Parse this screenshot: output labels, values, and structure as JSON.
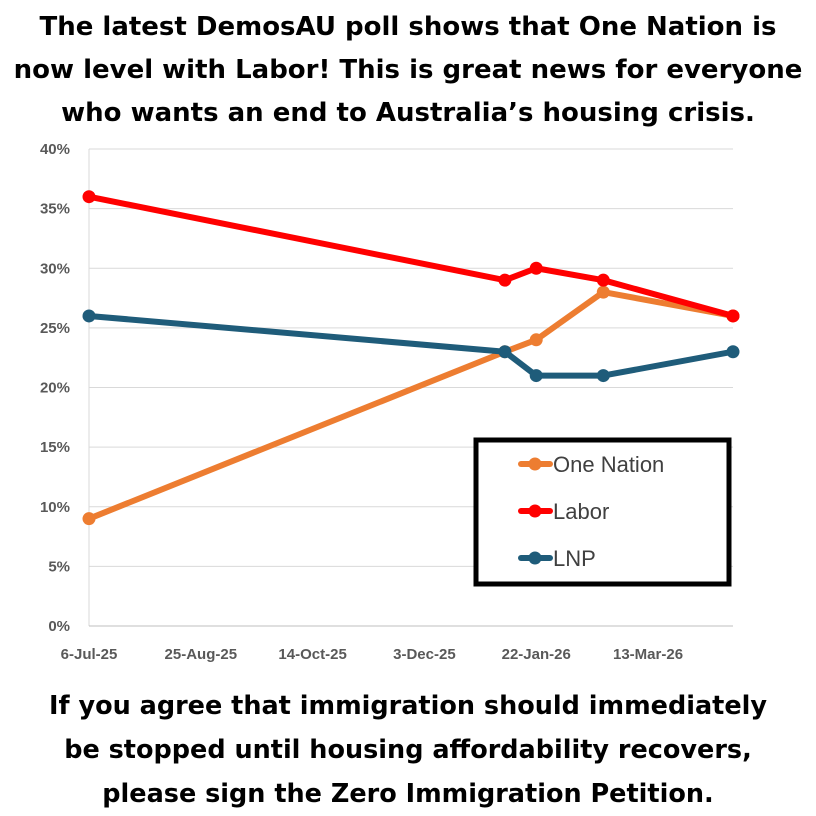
{
  "header": {
    "line1": "The latest DemosAU poll shows that One Nation is",
    "line2": "now level with Labor! This is great news for everyone",
    "line3": "who wants an end to Australia’s housing crisis."
  },
  "footer": {
    "line1": "If you agree that immigration should immediately",
    "line2": "be stopped until housing affordability recovers,",
    "line3": "please sign the Zero Immigration Petition."
  },
  "chart_data": {
    "type": "line",
    "title": "",
    "xlabel": "",
    "ylabel": "",
    "x_axis": {
      "type": "date",
      "range": [
        "2025-07-06",
        "2026-04-20"
      ],
      "tick_dates": [
        "2025-07-06",
        "2025-08-25",
        "2025-10-14",
        "2025-12-03",
        "2026-01-22",
        "2026-03-13"
      ],
      "tick_labels": [
        "6-Jul-25",
        "25-Aug-25",
        "14-Oct-25",
        "3-Dec-25",
        "22-Jan-26",
        "13-Mar-26"
      ]
    },
    "y_axis": {
      "range": [
        0,
        40
      ],
      "unit": "%",
      "ticks": [
        0,
        5,
        10,
        15,
        20,
        25,
        30,
        35,
        40
      ],
      "tick_labels": [
        "0%",
        "5%",
        "10%",
        "15%",
        "20%",
        "25%",
        "30%",
        "35%",
        "40%"
      ],
      "gridlines": true
    },
    "x": [
      "2025-07-06",
      "2026-01-08",
      "2026-01-22",
      "2026-02-21",
      "2026-04-20"
    ],
    "series": [
      {
        "name": "One Nation",
        "color": "#ED7D31",
        "values": [
          9,
          23,
          24,
          28,
          26
        ]
      },
      {
        "name": "Labor",
        "color": "#FF0000",
        "values": [
          36,
          29,
          30,
          29,
          26
        ]
      },
      {
        "name": "LNP",
        "color": "#1F5C7A",
        "values": [
          26,
          23,
          21,
          21,
          23
        ]
      }
    ],
    "legend": {
      "position": "bottom-right",
      "border": "#000000"
    }
  }
}
